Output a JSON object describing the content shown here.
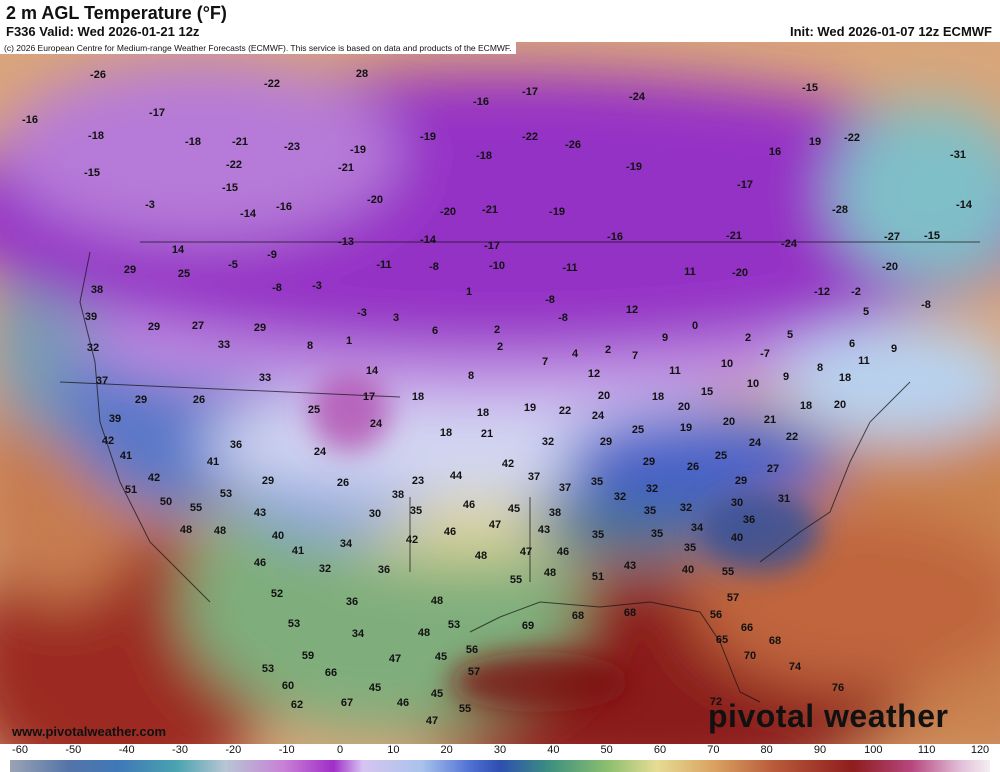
{
  "header": {
    "title": "2 m AGL Temperature (°F)",
    "valid": "F336 Valid: Wed 2026-01-21 12z",
    "init": "Init: Wed 2026-01-07 12z ECMWF",
    "copyright": "(c) 2026 European Centre for Medium-range Weather Forecasts (ECMWF). This service is based on data and products of the ECMWF."
  },
  "map": {
    "labels": [
      -26,
      28,
      -22,
      -17,
      -16,
      -24,
      -15,
      -16,
      -17,
      -18,
      -18,
      -21,
      -23,
      -19,
      -19,
      -22,
      -26,
      16,
      19,
      -22,
      -31,
      -15,
      -22,
      -21,
      -18,
      -19,
      -15,
      -20,
      -20,
      -21,
      -19,
      -17,
      -28,
      -14,
      -3,
      -14,
      -16,
      -13,
      -14,
      -17,
      -16,
      -21,
      -24,
      -27,
      -15,
      14,
      -5,
      -9,
      -11,
      -8,
      -10,
      -11,
      11,
      -20,
      -20,
      29,
      25,
      -8,
      -3,
      1,
      -8,
      -12,
      -2,
      -8,
      38,
      3,
      -3,
      -8,
      12,
      5,
      39,
      29,
      27,
      29,
      6,
      2,
      0,
      9,
      2,
      5,
      32,
      33,
      8,
      1,
      2,
      6,
      -7,
      11,
      9,
      2,
      7,
      7,
      4,
      10,
      8,
      37,
      33,
      14,
      8,
      12,
      11,
      10,
      9,
      18,
      17,
      18,
      20,
      18,
      15,
      29,
      26,
      25,
      18,
      19,
      22,
      24,
      20,
      18,
      20,
      39,
      24,
      18,
      21,
      25,
      19,
      20,
      21,
      22,
      42,
      36,
      32,
      29,
      24,
      41,
      24,
      42,
      29,
      26,
      25,
      27,
      41,
      23,
      44,
      37,
      29,
      26,
      37,
      35,
      32,
      29,
      42,
      38,
      46,
      45,
      32,
      32,
      30,
      31,
      51,
      50,
      55,
      53,
      43,
      30,
      35,
      47,
      38,
      35,
      34,
      36,
      48,
      48,
      40,
      43,
      46,
      35,
      35,
      40,
      42,
      34,
      41,
      48,
      47,
      46,
      35,
      46,
      32,
      36,
      48,
      55,
      51,
      43,
      40,
      55,
      52,
      36,
      48,
      57,
      68,
      68,
      53,
      56,
      34,
      48,
      53,
      69,
      66,
      45,
      68,
      65,
      70,
      56,
      47,
      59,
      66,
      57,
      74,
      53,
      60,
      45,
      45,
      76,
      62,
      67,
      46,
      55,
      72,
      47
    ]
  },
  "footer": {
    "website": "www.pivotalweather.com",
    "logo": "pivotal weather"
  },
  "colorbar": {
    "ticks": [
      -60,
      -50,
      -40,
      -30,
      -20,
      -10,
      0,
      10,
      20,
      30,
      40,
      50,
      60,
      70,
      80,
      90,
      100,
      110,
      120
    ]
  }
}
